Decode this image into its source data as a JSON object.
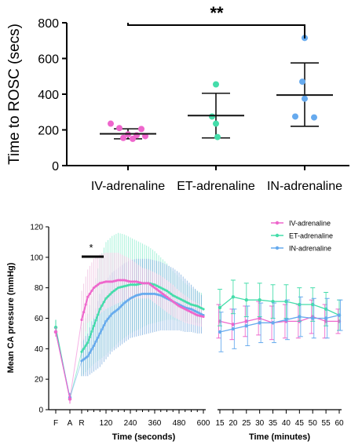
{
  "colors": {
    "iv": "#ee66cc",
    "et": "#44ddaa",
    "in": "#66aaee",
    "iv_band": "#eebbdd",
    "et_band": "#88eecc",
    "in_band": "#77aadd"
  },
  "chart_data": [
    {
      "type": "scatter",
      "ylabel": "Time to ROSC (secs)",
      "ylim": [
        0,
        800
      ],
      "yticks": [
        "0",
        "200",
        "400",
        "600",
        "800"
      ],
      "categories": [
        "IV-adrenaline",
        "ET-adrenaline",
        "IN-adrenaline"
      ],
      "grid": false,
      "series": [
        {
          "name": "IV-adrenaline",
          "points": [
            235,
            210,
            175,
            170,
            165,
            155,
            150,
            205
          ],
          "mean": 178,
          "sd_low": 150,
          "sd_high": 206
        },
        {
          "name": "ET-adrenaline",
          "points": [
            455,
            275,
            235,
            160
          ],
          "mean": 280,
          "sd_low": 155,
          "sd_high": 405
        },
        {
          "name": "IN-adrenaline",
          "points": [
            715,
            470,
            375,
            275,
            270
          ],
          "mean": 395,
          "sd_low": 220,
          "sd_high": 575
        }
      ],
      "annotation": "**"
    },
    {
      "type": "line",
      "ylabel": "Mean CA pressure (mmHg)",
      "ylim": [
        0,
        120
      ],
      "yticks": [
        "0",
        "20",
        "40",
        "60",
        "80",
        "100",
        "120"
      ],
      "legend_position": "top-right",
      "significance_marker": "*",
      "panels": [
        {
          "xlabel": "Time (seconds)",
          "xtick_labels": [
            "F",
            "A",
            "R",
            "120",
            "240",
            "360",
            "480",
            "600"
          ],
          "series": [
            {
              "name": "IV-adrenaline",
              "pre": {
                "F": [
                  51,
                  48,
                  54
                ],
                "A": [
                  7,
                  4,
                  10
                ]
              },
              "x": [
                0,
                30,
                60,
                90,
                120,
                150,
                180,
                210,
                240,
                270,
                300,
                330,
                360,
                390,
                420,
                450,
                480,
                510,
                540,
                570,
                600
              ],
              "y": [
                59,
                74,
                80,
                83,
                84,
                84,
                85,
                85,
                84,
                84,
                83,
                83,
                80,
                77,
                74,
                71,
                68,
                66,
                64,
                62,
                61
              ],
              "lo": [
                40,
                57,
                60,
                63,
                66,
                68,
                70,
                72,
                72,
                73,
                73,
                73,
                70,
                67,
                64,
                61,
                59,
                57,
                56,
                55,
                54
              ],
              "hi": [
                78,
                92,
                99,
                102,
                103,
                103,
                103,
                101,
                99,
                96,
                93,
                92,
                90,
                88,
                85,
                82,
                78,
                75,
                72,
                70,
                68
              ]
            },
            {
              "name": "ET-adrenaline",
              "pre": {
                "F": [
                  54,
                  49,
                  59
                ],
                "A": [
                  7,
                  4,
                  10
                ]
              },
              "x": [
                0,
                30,
                60,
                90,
                120,
                150,
                180,
                210,
                240,
                270,
                300,
                330,
                360,
                390,
                420,
                450,
                480,
                510,
                540,
                570,
                600
              ],
              "y": [
                38,
                44,
                55,
                66,
                73,
                77,
                80,
                81,
                82,
                82,
                83,
                83,
                82,
                80,
                78,
                75,
                73,
                71,
                69,
                68,
                66
              ],
              "lo": [
                22,
                26,
                30,
                33,
                36,
                40,
                44,
                47,
                50,
                52,
                54,
                56,
                57,
                58,
                59,
                59,
                58,
                58,
                57,
                57,
                56
              ],
              "hi": [
                54,
                63,
                80,
                99,
                110,
                114,
                116,
                115,
                113,
                111,
                109,
                107,
                104,
                100,
                96,
                91,
                87,
                83,
                80,
                78,
                76
              ]
            },
            {
              "name": "IN-adrenaline",
              "pre": {
                "F": [
                  51,
                  48,
                  54
                ],
                "A": [
                  8,
                  5,
                  11
                ]
              },
              "x": [
                0,
                30,
                60,
                90,
                120,
                150,
                180,
                210,
                240,
                270,
                300,
                330,
                360,
                390,
                420,
                450,
                480,
                510,
                540,
                570,
                600
              ],
              "y": [
                32,
                35,
                42,
                50,
                58,
                63,
                66,
                70,
                73,
                75,
                76,
                76,
                76,
                75,
                73,
                71,
                69,
                67,
                66,
                64,
                62
              ],
              "lo": [
                22,
                22,
                25,
                28,
                33,
                38,
                41,
                44,
                47,
                48,
                49,
                50,
                51,
                52,
                52,
                52,
                52,
                51,
                51,
                50,
                50
              ],
              "hi": [
                45,
                50,
                62,
                76,
                85,
                90,
                93,
                96,
                98,
                99,
                99,
                99,
                98,
                97,
                95,
                93,
                90,
                86,
                82,
                78,
                74
              ]
            }
          ]
        },
        {
          "xlabel": "Time (minutes)",
          "x": [
            15,
            20,
            25,
            30,
            35,
            40,
            45,
            50,
            55,
            60
          ],
          "xtick_labels": [
            "15",
            "20",
            "25",
            "30",
            "35",
            "40",
            "45",
            "50",
            "55",
            "60"
          ],
          "series": [
            {
              "name": "IV-adrenaline",
              "y": [
                58,
                56,
                58,
                60,
                57,
                58,
                58,
                61,
                58,
                58
              ],
              "lo": [
                47,
                46,
                48,
                49,
                46,
                47,
                47,
                50,
                47,
                50
              ],
              "hi": [
                69,
                66,
                68,
                71,
                68,
                69,
                69,
                72,
                69,
                66
              ]
            },
            {
              "name": "ET-adrenaline",
              "y": [
                67,
                74,
                72,
                72,
                71,
                71,
                69,
                69,
                66,
                62
              ],
              "lo": [
                55,
                63,
                61,
                61,
                60,
                60,
                58,
                58,
                55,
                52
              ],
              "hi": [
                79,
                85,
                83,
                83,
                82,
                82,
                80,
                80,
                77,
                72
              ]
            },
            {
              "name": "IN-adrenaline",
              "y": [
                51,
                53,
                55,
                57,
                57,
                59,
                61,
                60,
                60,
                62
              ],
              "lo": [
                38,
                40,
                42,
                44,
                44,
                46,
                48,
                47,
                47,
                52
              ],
              "hi": [
                64,
                66,
                68,
                70,
                70,
                72,
                74,
                73,
                73,
                72
              ]
            }
          ]
        }
      ]
    }
  ]
}
